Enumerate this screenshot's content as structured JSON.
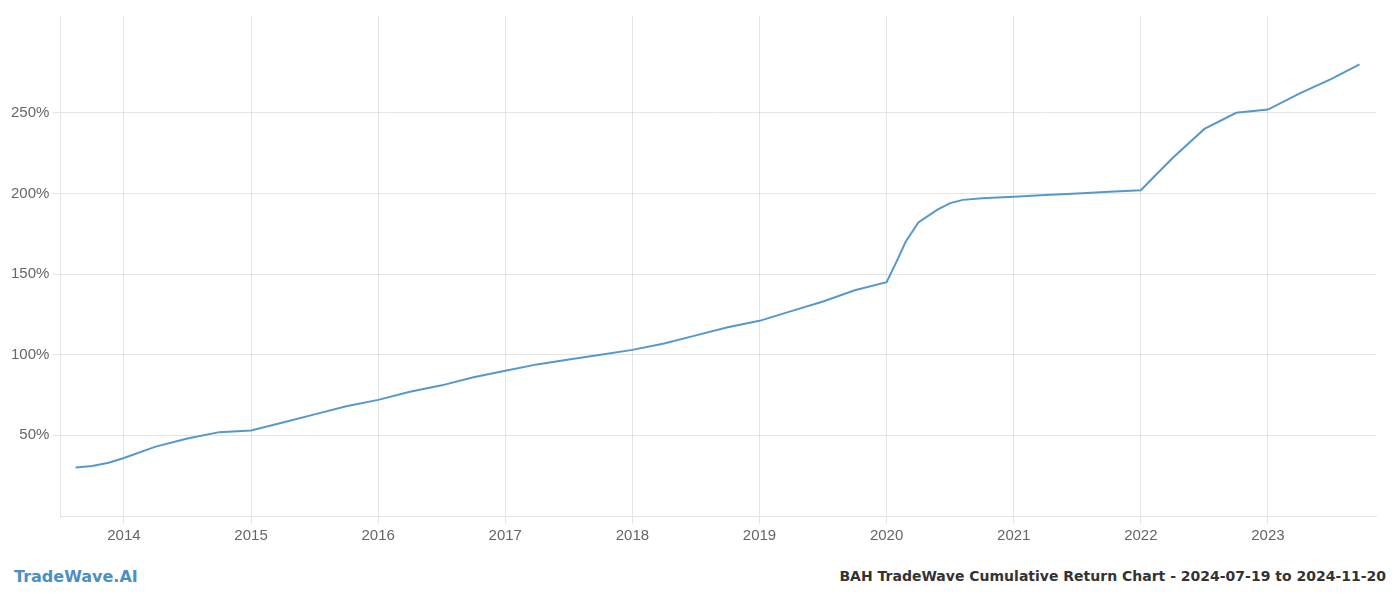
{
  "chart_data": {
    "type": "line",
    "title": "BAH TradeWave Cumulative Return Chart - 2024-07-19 to 2024-11-20",
    "annotations": [
      "TradeWave.AI"
    ],
    "x": [
      2013.62,
      2013.75,
      2013.88,
      2014.0,
      2014.25,
      2014.5,
      2014.75,
      2015.0,
      2015.25,
      2015.5,
      2015.75,
      2016.0,
      2016.25,
      2016.5,
      2016.75,
      2017.0,
      2017.25,
      2017.5,
      2017.75,
      2018.0,
      2018.25,
      2018.5,
      2018.75,
      2019.0,
      2019.25,
      2019.5,
      2019.75,
      2020.0,
      2020.08,
      2020.15,
      2020.25,
      2020.4,
      2020.5,
      2020.6,
      2020.75,
      2021.0,
      2021.25,
      2021.5,
      2021.75,
      2022.0,
      2022.1,
      2022.25,
      2022.5,
      2022.75,
      2023.0,
      2023.25,
      2023.5,
      2023.72
    ],
    "values": [
      30,
      31,
      33,
      36,
      43,
      48,
      52,
      53,
      58,
      63,
      68,
      72,
      77,
      81,
      86,
      90,
      94,
      97,
      100,
      103,
      107,
      112,
      117,
      121,
      127,
      133,
      140,
      145,
      158,
      170,
      182,
      190,
      194,
      196,
      197,
      198,
      199,
      200,
      201,
      202,
      210,
      222,
      240,
      250,
      252,
      262,
      271,
      280
    ],
    "color": "#5599cc",
    "xlim": [
      2013.5,
      2023.85
    ],
    "xticks": [
      2014,
      2015,
      2016,
      2017,
      2018,
      2019,
      2020,
      2021,
      2022,
      2023
    ],
    "ylim": [
      0,
      310
    ],
    "yticks": [
      {
        "value": 50,
        "label": "50%"
      },
      {
        "value": 100,
        "label": "100%"
      },
      {
        "value": 150,
        "label": "150%"
      },
      {
        "value": 200,
        "label": "200%"
      },
      {
        "value": 250,
        "label": "250%"
      }
    ],
    "grid": true
  }
}
